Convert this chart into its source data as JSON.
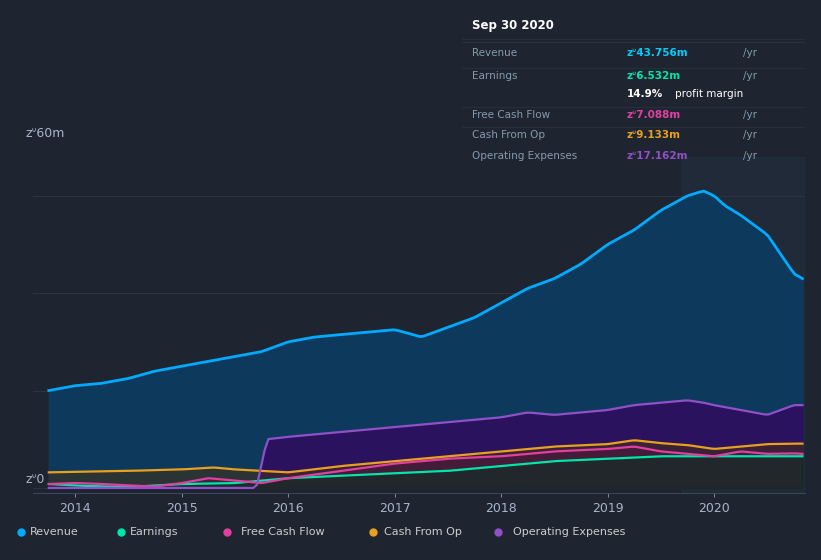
{
  "bg_color": "#1e2530",
  "plot_bg_color": "#1e2530",
  "grid_color": "#2a3444",
  "title_box": {
    "date": "Sep 30 2020",
    "rows": [
      {
        "label": "Revenue",
        "value": "zᐡ43.756m",
        "value_color": "#00ccff"
      },
      {
        "label": "Earnings",
        "value": "zᐡ6.532m",
        "value_color": "#00e5aa"
      },
      {
        "label": "",
        "value": "14.9% profit margin",
        "value_color": "#ffffff"
      },
      {
        "label": "Free Cash Flow",
        "value": "zᐡ7.088m",
        "value_color": "#e040a0"
      },
      {
        "label": "Cash From Op",
        "value": "zᐡ9.133m",
        "value_color": "#e8a020"
      },
      {
        "label": "Operating Expenses",
        "value": "zᐡ17.162m",
        "value_color": "#9050c8"
      }
    ]
  },
  "ylabel_top": "zᐡ60m",
  "ylabel_bot": "zᐡ0",
  "x_ticks": [
    2014,
    2015,
    2016,
    2017,
    2018,
    2019,
    2020
  ],
  "series_colors": {
    "revenue": "#00aaff",
    "earnings": "#00e5aa",
    "fcf": "#e040a0",
    "cashfromop": "#e8a020",
    "opex": "#9050c8"
  },
  "legend": [
    {
      "label": "Revenue",
      "color": "#00aaff"
    },
    {
      "label": "Earnings",
      "color": "#00e5aa"
    },
    {
      "label": "Free Cash Flow",
      "color": "#e040a0"
    },
    {
      "label": "Cash From Op",
      "color": "#e8a020"
    },
    {
      "label": "Operating Expenses",
      "color": "#9050c8"
    }
  ],
  "xlim": [
    2013.6,
    2020.85
  ],
  "ylim": [
    -1,
    68
  ]
}
